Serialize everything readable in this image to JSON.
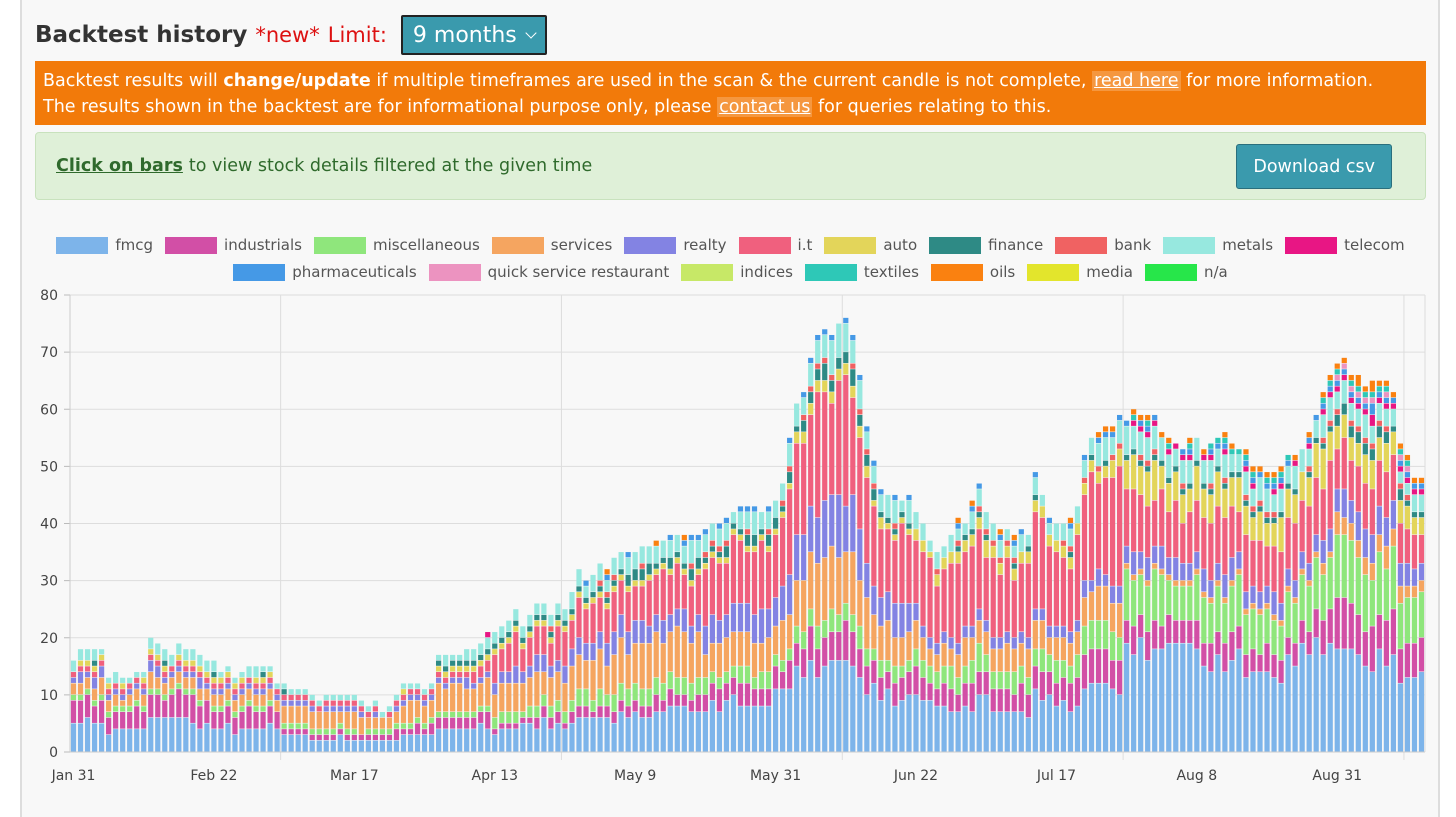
{
  "header": {
    "title": "Backtest history",
    "new_label": "*new*",
    "limit_label": "Limit:",
    "limit_value": "9 months"
  },
  "warning": {
    "line1_pre": "Backtest results will",
    "line1_bold": "change/update",
    "line1_mid": "if multiple timeframes are used in the scan & the current candle is not complete,",
    "line1_link": "read here",
    "line1_post": "for more information.",
    "line2_pre": "The results shown in the backtest are for informational purpose only, please",
    "line2_link": "contact us",
    "line2_post": "for queries relating to this."
  },
  "info": {
    "link": "Click on bars",
    "text": "to view stock details filtered at the given time",
    "download_label": "Download csv"
  },
  "colors": {
    "accent_teal": "#3a9aad",
    "warning_bg": "#f27a0a",
    "info_bg": "#dff0d8",
    "info_border": "#c8e2bd",
    "info_text": "#2f6a2c",
    "alert_red": "#dd1111",
    "grid": "#dddddd"
  },
  "chart_data": {
    "type": "bar",
    "stacked": true,
    "ylim": [
      0,
      80
    ],
    "yticks": [
      0,
      10,
      20,
      30,
      40,
      50,
      60,
      70,
      80
    ],
    "x_tick_labels": [
      "Jan 31",
      "Feb 22",
      "Mar 17",
      "Apr 13",
      "May 9",
      "May 31",
      "Jun 22",
      "Jul 17",
      "Aug 8",
      "Aug 31"
    ],
    "x_tick_bar_index": [
      0,
      20,
      40,
      60,
      80,
      100,
      120,
      140,
      160,
      180
    ],
    "x_grid_bar_index": [
      30,
      70,
      110,
      150,
      190
    ],
    "legend_position": "top",
    "xlabel": "",
    "ylabel": "",
    "series": [
      {
        "name": "fmcg",
        "color": "#7db4ea"
      },
      {
        "name": "industrials",
        "color": "#d24fa6"
      },
      {
        "name": "miscellaneous",
        "color": "#8fe67c"
      },
      {
        "name": "services",
        "color": "#f5a560"
      },
      {
        "name": "realty",
        "color": "#8383e3"
      },
      {
        "name": "i.t",
        "color": "#f0607e"
      },
      {
        "name": "auto",
        "color": "#e3d55a"
      },
      {
        "name": "finance",
        "color": "#2e8a85"
      },
      {
        "name": "bank",
        "color": "#f06262"
      },
      {
        "name": "metals",
        "color": "#97e8df"
      },
      {
        "name": "telecom",
        "color": "#e81684"
      },
      {
        "name": "pharmaceuticals",
        "color": "#4599e6"
      },
      {
        "name": "quick service restaurant",
        "color": "#ec93c0"
      },
      {
        "name": "indices",
        "color": "#c7e867"
      },
      {
        "name": "textiles",
        "color": "#2ec8b7"
      },
      {
        "name": "oils",
        "color": "#fa8110"
      },
      {
        "name": "media",
        "color": "#e3e52c"
      },
      {
        "name": "n/a",
        "color": "#27e64a"
      }
    ],
    "totals": [
      16,
      18,
      18,
      18,
      18,
      13,
      14,
      13,
      13,
      14,
      14,
      20,
      19,
      18,
      17,
      19,
      18,
      18,
      17,
      16,
      16,
      14,
      15,
      13,
      14,
      15,
      15,
      15,
      15,
      12,
      12,
      11,
      11,
      11,
      10,
      9,
      10,
      10,
      10,
      10,
      10,
      9,
      8,
      9,
      7,
      8,
      10,
      12,
      12,
      12,
      11,
      12,
      17,
      17,
      17,
      17,
      18,
      18,
      19,
      21,
      21,
      22,
      23,
      25,
      22,
      24,
      26,
      26,
      24,
      26,
      25,
      28,
      32,
      30,
      31,
      33,
      32,
      34,
      35,
      35,
      35,
      36,
      36,
      37,
      37,
      38,
      38,
      38,
      38,
      38,
      39,
      40,
      40,
      41,
      42,
      43,
      43,
      43,
      42,
      43,
      44,
      47,
      55,
      61,
      63,
      69,
      73,
      74,
      73,
      75,
      76,
      73,
      66,
      57,
      51,
      46,
      45,
      45,
      44,
      45,
      42,
      40,
      37,
      35,
      36,
      38,
      41,
      40,
      44,
      47,
      42,
      40,
      39,
      39,
      38,
      39,
      38,
      49,
      45,
      41,
      40,
      40,
      41,
      43,
      52,
      55,
      56,
      57,
      57,
      59,
      58,
      60,
      59,
      59,
      59,
      56,
      55,
      54,
      53,
      55,
      55,
      53,
      54,
      55,
      56,
      54,
      53,
      53,
      50,
      50,
      49,
      49,
      50,
      52,
      52,
      53,
      56,
      59,
      63,
      66,
      68,
      69,
      66,
      66,
      64,
      65,
      65,
      65,
      63,
      54,
      52,
      48,
      48
    ]
  }
}
